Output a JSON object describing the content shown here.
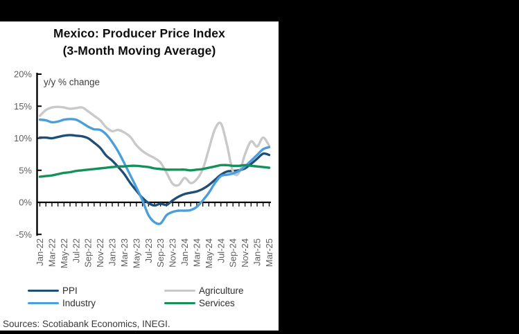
{
  "window": {
    "background": "#000000",
    "card_background": "#FFFFFF"
  },
  "card": {
    "title_line1": "Mexico: Producer Price Index",
    "title_line2": "(3-Month Moving Average)",
    "axis_note": "y/y % change",
    "sources": "Sources: Scotiabank Economics, INEGI."
  },
  "colors": {
    "axis": "#000000",
    "tick_labels": "#5f5f5f",
    "ppi": "#1F4E79",
    "agriculture": "#C9C9C9",
    "industry": "#4A9ED9",
    "services": "#12925A"
  },
  "legend": {
    "items": [
      {
        "label": "PPI",
        "color": "#1F4E79"
      },
      {
        "label": "Agriculture",
        "color": "#C9C9C9"
      },
      {
        "label": "Industry",
        "color": "#4A9ED9"
      },
      {
        "label": "Services",
        "color": "#12925A"
      }
    ]
  },
  "chart_data": {
    "type": "line",
    "title": "Mexico: Producer Price Index (3-Month Moving Average)",
    "axis_note": "y/y % change",
    "x": [
      "Jan-22",
      "Feb-22",
      "Mar-22",
      "Apr-22",
      "May-22",
      "Jun-22",
      "Jul-22",
      "Aug-22",
      "Sep-22",
      "Oct-22",
      "Nov-22",
      "Dec-22",
      "Jan-23",
      "Feb-23",
      "Mar-23",
      "Apr-23",
      "May-23",
      "Jun-23",
      "Jul-23",
      "Aug-23",
      "Sep-23",
      "Oct-23",
      "Nov-23",
      "Dec-23",
      "Jan-24",
      "Feb-24",
      "Mar-24",
      "Apr-24",
      "May-24",
      "Jun-24",
      "Jul-24",
      "Aug-24",
      "Sep-24",
      "Oct-24",
      "Nov-24",
      "Dec-24",
      "Jan-25",
      "Feb-25",
      "Mar-25"
    ],
    "x_tick_labels": [
      "Jan-22",
      "Mar-22",
      "May-22",
      "Jul-22",
      "Sep-22",
      "Nov-22",
      "Jan-23",
      "Mar-23",
      "May-23",
      "Jul-23",
      "Sep-23",
      "Nov-23",
      "Jan-24",
      "Mar-24",
      "May-24",
      "Jul-24",
      "Sep-24",
      "Nov-24",
      "Jan-25",
      "Mar-25"
    ],
    "x_tick_step": 2,
    "ylim": [
      -5,
      20
    ],
    "ytick_values": [
      20,
      15,
      10,
      5,
      0,
      -5
    ],
    "ytick_labels": [
      "20%",
      "15%",
      "10%",
      "5%",
      "0%",
      "-5%"
    ],
    "grid": false,
    "legend_position": "bottom",
    "series": [
      {
        "name": "PPI",
        "color": "#1F4E79",
        "values": [
          10.1,
          10.1,
          10.0,
          10.2,
          10.4,
          10.5,
          10.4,
          10.3,
          10.0,
          9.3,
          8.5,
          7.3,
          6.5,
          5.5,
          4.4,
          3.0,
          1.8,
          0.7,
          -0.1,
          -0.5,
          -0.2,
          -0.4,
          0.3,
          0.9,
          1.3,
          1.5,
          1.7,
          2.1,
          2.7,
          3.5,
          4.3,
          4.8,
          4.9,
          5.0,
          5.3,
          6.0,
          6.8,
          7.6,
          7.4
        ]
      },
      {
        "name": "Agriculture",
        "color": "#C9C9C9",
        "values": [
          13.5,
          14.4,
          14.8,
          14.9,
          14.8,
          14.6,
          14.7,
          14.8,
          14.2,
          13.5,
          12.8,
          11.7,
          11.1,
          11.3,
          10.9,
          10.2,
          8.9,
          8.0,
          7.4,
          6.9,
          6.2,
          4.6,
          2.9,
          2.7,
          3.8,
          3.0,
          3.6,
          5.2,
          8.3,
          11.4,
          12.3,
          9.0,
          4.8,
          4.6,
          7.5,
          9.5,
          8.7,
          10.1,
          8.8
        ]
      },
      {
        "name": "Industry",
        "color": "#4A9ED9",
        "values": [
          12.9,
          12.8,
          12.5,
          12.6,
          12.9,
          13.0,
          12.9,
          12.4,
          11.8,
          11.4,
          11.3,
          10.6,
          9.4,
          7.9,
          6.1,
          4.2,
          2.3,
          0.3,
          -2.0,
          -3.1,
          -3.3,
          -2.0,
          -1.5,
          -1.3,
          -1.3,
          -1.2,
          -0.7,
          0.3,
          1.5,
          3.0,
          4.1,
          4.3,
          4.5,
          4.9,
          5.6,
          6.5,
          7.4,
          8.3,
          8.6
        ]
      },
      {
        "name": "Services",
        "color": "#12925A",
        "values": [
          4.0,
          4.1,
          4.2,
          4.4,
          4.6,
          4.7,
          4.9,
          5.0,
          5.1,
          5.2,
          5.3,
          5.4,
          5.5,
          5.6,
          5.6,
          5.7,
          5.7,
          5.6,
          5.5,
          5.3,
          5.2,
          5.1,
          5.1,
          5.1,
          5.1,
          5.0,
          5.1,
          5.2,
          5.4,
          5.6,
          5.8,
          5.8,
          5.7,
          5.7,
          5.8,
          5.7,
          5.6,
          5.5,
          5.4
        ]
      }
    ]
  }
}
